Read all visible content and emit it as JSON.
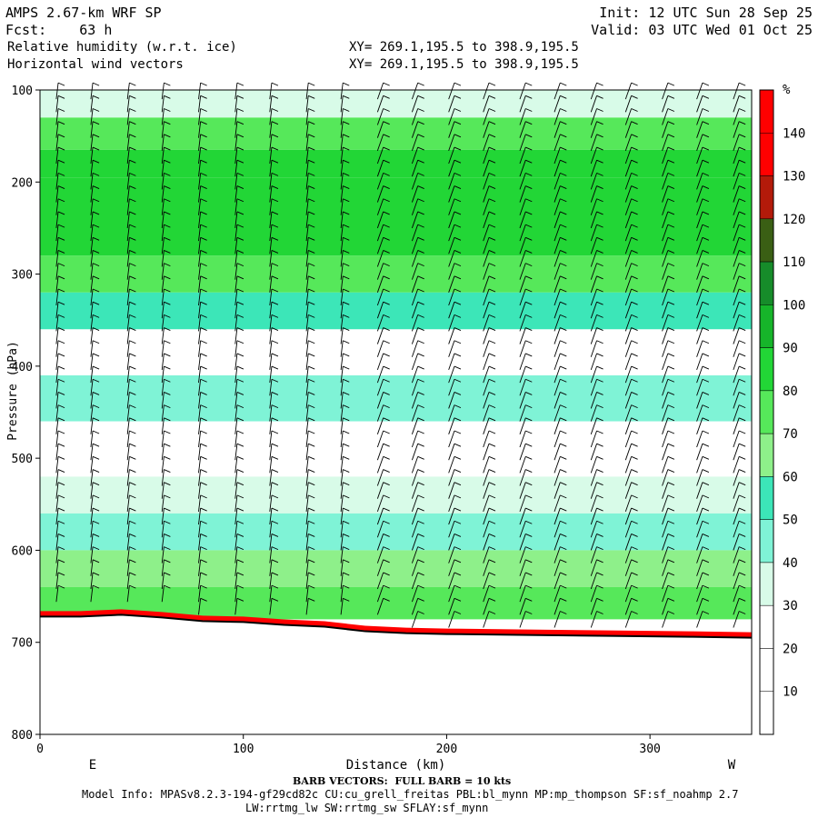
{
  "header": {
    "model": "AMPS 2.67-km WRF SP",
    "fcst": "Fcst:    63 h",
    "field1": "Relative humidity (w.r.t. ice)",
    "field2": "Horizontal wind vectors",
    "init": "Init: 12 UTC Sun 28 Sep 25",
    "valid": "Valid: 03 UTC Wed 01 Oct 25",
    "xy1": "XY= 269.1,195.5 to 398.9,195.5",
    "xy2": "XY= 269.1,195.5 to 398.9,195.5"
  },
  "footer": {
    "barb_note": "BARB VECTORS:  FULL BARB = 10 kts",
    "model_info": "Model Info: MPASv8.2.3-194-gf29cd82c CU:cu_grell_freitas PBL:bl_mynn MP:mp_thompson SF:sf_noahmp 2.7",
    "model_info2": "LW:rrtmg_lw SW:rrtmg_sw SFLAY:sf_mynn"
  },
  "chart_data": {
    "type": "heatmap",
    "title": "Relative humidity (w.r.t. ice) cross section with horizontal wind vectors",
    "xlabel": "Distance (km)",
    "ylabel": "Pressure (hPa)",
    "xlim": [
      0,
      350
    ],
    "ylim": [
      800,
      100
    ],
    "xticks": [
      0,
      100,
      200,
      300
    ],
    "yticks": [
      100,
      200,
      300,
      400,
      500,
      600,
      700,
      800
    ],
    "x_end_labels": {
      "left": "E",
      "right": "W"
    },
    "colorbar": {
      "unit": "%",
      "levels": [
        10,
        20,
        30,
        40,
        50,
        60,
        70,
        80,
        90,
        100,
        110,
        120,
        130,
        140
      ],
      "colors": [
        "#ffffff",
        "#ffffff",
        "#ffffff",
        "#d8fbe8",
        "#7ff3d6",
        "#3ce6b8",
        "#8ef08a",
        "#56e85a",
        "#22d636",
        "#16b52a",
        "#168c2a",
        "#3a5f14",
        "#b31a0a",
        "#ff0000",
        "#ff0000"
      ]
    },
    "terrain_pressure": [
      [
        0,
        672
      ],
      [
        20,
        672
      ],
      [
        40,
        670
      ],
      [
        60,
        673
      ],
      [
        80,
        677
      ],
      [
        100,
        678
      ],
      [
        120,
        681
      ],
      [
        140,
        683
      ],
      [
        160,
        688
      ],
      [
        180,
        690
      ],
      [
        200,
        691
      ],
      [
        240,
        692
      ],
      [
        280,
        693
      ],
      [
        320,
        694
      ],
      [
        350,
        695
      ]
    ],
    "rh_layers": [
      {
        "p_top": 100,
        "p_bot": 130,
        "rh": 35
      },
      {
        "p_top": 130,
        "p_bot": 165,
        "rh": 72
      },
      {
        "p_top": 165,
        "p_bot": 195,
        "rh": 82
      },
      {
        "p_top": 195,
        "p_bot": 280,
        "rh": 88
      },
      {
        "p_top": 280,
        "p_bot": 320,
        "rh": 76
      },
      {
        "p_top": 320,
        "p_bot": 360,
        "rh": 52
      },
      {
        "p_top": 360,
        "p_bot": 410,
        "rh": 22
      },
      {
        "p_top": 410,
        "p_bot": 460,
        "rh": 44
      },
      {
        "p_top": 460,
        "p_bot": 520,
        "rh": 28
      },
      {
        "p_top": 520,
        "p_bot": 560,
        "rh": 34
      },
      {
        "p_top": 560,
        "p_bot": 600,
        "rh": 48
      },
      {
        "p_top": 600,
        "p_bot": 640,
        "rh": 62
      },
      {
        "p_top": 640,
        "p_bot": 675,
        "rh": 78
      }
    ],
    "wind_barb_columns_km": [
      8,
      25,
      43,
      60,
      78,
      96,
      113,
      131,
      148,
      166,
      183,
      201,
      218,
      236,
      253,
      271,
      288,
      306,
      323,
      341
    ]
  }
}
